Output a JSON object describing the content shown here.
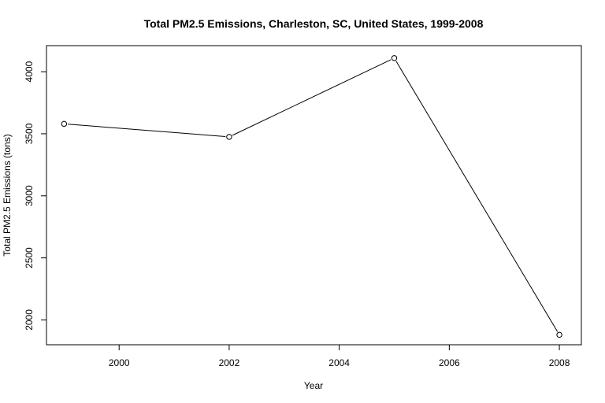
{
  "chart_data": {
    "type": "line",
    "title": "Total PM2.5 Emissions, Charleston, SC, United States, 1999-2008",
    "xlabel": "Year",
    "ylabel": "Total PM2.5 Emissions (tons)",
    "x": [
      1999,
      2002,
      2005,
      2008
    ],
    "series": [
      {
        "values": [
          3580,
          3475,
          4110,
          1880
        ]
      }
    ],
    "xlim": [
      1998.68,
      2008.4
    ],
    "ylim": [
      1800,
      4210
    ],
    "xticks": [
      2000,
      2002,
      2004,
      2006,
      2008
    ],
    "yticks": [
      2000,
      2500,
      3000,
      3500,
      4000
    ],
    "xtick_labels": [
      "2000",
      "2002",
      "2004",
      "2006",
      "2008"
    ],
    "ytick_labels": [
      "2000",
      "2500",
      "3000",
      "3500",
      "4000"
    ],
    "markers": "open-circle",
    "line_color": "#000000",
    "grid": false,
    "legend": "none"
  }
}
